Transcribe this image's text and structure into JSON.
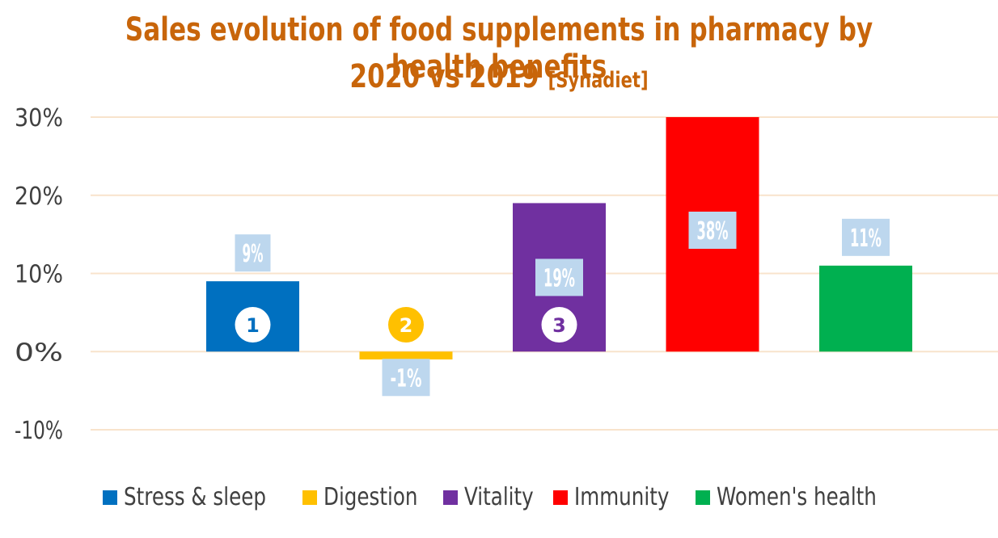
{
  "title_line1": "Sales evolution of food supplements in pharmacy by health benefits",
  "title_line2": "2020 vs 2019",
  "title_source": "[Synadiet]",
  "chart_data": {
    "type": "bar",
    "categories": [
      "Stress & sleep",
      "Digestion",
      "Vitality",
      "Immunity",
      "Women's health"
    ],
    "values": [
      9,
      -1,
      19,
      38,
      11
    ],
    "data_labels": [
      "9%",
      "-1%",
      "19%",
      "38%",
      "11%"
    ],
    "colors": [
      "#0070C0",
      "#FFC000",
      "#7030A0",
      "#FF0000",
      "#00B050"
    ],
    "ylim": [
      -10,
      30
    ],
    "yticks": [
      -10,
      0,
      10,
      20,
      30
    ],
    "ytick_labels": [
      "-10%",
      "0%",
      "10%",
      "20%",
      "30%"
    ],
    "legend_position": "bottom",
    "grid": true,
    "rank_badges": [
      {
        "category": "Stress & sleep",
        "text": "1",
        "bg": "#ffffff",
        "fg": "#0070C0"
      },
      {
        "category": "Digestion",
        "text": "2",
        "bg": "#FFC000",
        "fg": "#ffffff"
      },
      {
        "category": "Vitality",
        "text": "3",
        "bg": "#ffffff",
        "fg": "#7030A0"
      }
    ],
    "label_box_color": "#BDD7EE",
    "grid_color": "#F8E3CC"
  }
}
